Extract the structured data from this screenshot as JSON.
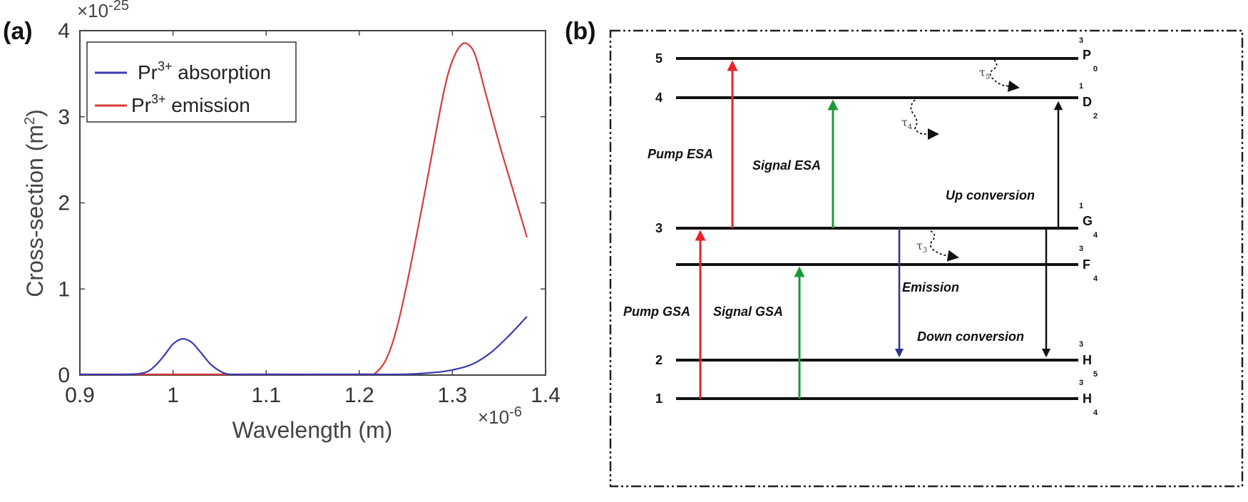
{
  "panel_a": {
    "letter": "(a)",
    "y_multiplier": "×10",
    "y_exponent": "-25",
    "x_multiplier": "×10",
    "x_exponent": "-6",
    "ylabel_main": "Cross-section (m",
    "ylabel_sup": "2",
    "ylabel_end": ")",
    "xlabel": "Wavelength (m)",
    "legend": [
      {
        "pre": "Pr",
        "sup": "3+",
        "post": " absorption",
        "color": "#3b3bb0"
      },
      {
        "pre": "Pr",
        "sup": "3+",
        "post": " emission",
        "color": "#d93a3a"
      }
    ]
  },
  "chart_data": {
    "type": "line",
    "title": "",
    "xlabel": "Wavelength (m)",
    "ylabel": "Cross-section (m^2)",
    "x_scale": "1e-6",
    "y_scale": "1e-25",
    "xlim": [
      0.9,
      1.4
    ],
    "ylim": [
      0,
      4
    ],
    "xticks": [
      "0.9",
      "1",
      "1.1",
      "1.2",
      "1.3",
      "1.4"
    ],
    "yticks": [
      "0",
      "1",
      "2",
      "3",
      "4"
    ],
    "xtick_values": [
      0.9,
      1.0,
      1.1,
      1.2,
      1.3,
      1.4
    ],
    "ytick_values": [
      0,
      1,
      2,
      3,
      4
    ],
    "series": [
      {
        "name": "Pr3+ absorption",
        "color": "#3b3bb0",
        "x": [
          0.9,
          0.95,
          0.97,
          0.98,
          0.99,
          1.0,
          1.01,
          1.02,
          1.03,
          1.04,
          1.05,
          1.06,
          1.08,
          1.1,
          1.2,
          1.25,
          1.28,
          1.3,
          1.32,
          1.34,
          1.36,
          1.38
        ],
        "y": [
          0.0,
          0.0,
          0.03,
          0.1,
          0.22,
          0.36,
          0.42,
          0.38,
          0.26,
          0.13,
          0.05,
          0.01,
          0.0,
          0.0,
          0.0,
          0.01,
          0.03,
          0.06,
          0.12,
          0.25,
          0.45,
          0.68
        ]
      },
      {
        "name": "Pr3+ emission",
        "color": "#d93a3a",
        "x": [
          0.9,
          1.0,
          1.1,
          1.2,
          1.22,
          1.235,
          1.25,
          1.27,
          1.29,
          1.3,
          1.31,
          1.318,
          1.325,
          1.335,
          1.35,
          1.365,
          1.38
        ],
        "y": [
          0.0,
          0.0,
          0.0,
          0.0,
          0.05,
          0.35,
          1.0,
          2.1,
          3.25,
          3.65,
          3.84,
          3.83,
          3.7,
          3.3,
          2.7,
          2.15,
          1.6
        ]
      }
    ]
  },
  "panel_b": {
    "letter": "(b)",
    "levels": [
      {
        "num": "1",
        "sup": "3",
        "term": "H",
        "sub": "4"
      },
      {
        "num": "2",
        "sup": "3",
        "term": "H",
        "sub": "5"
      },
      {
        "num": "",
        "sup": "3",
        "term": "F",
        "sub": "4"
      },
      {
        "num": "3",
        "sup": "1",
        "term": "G",
        "sub": "4"
      },
      {
        "num": "4",
        "sup": "1",
        "term": "D",
        "sub": "2"
      },
      {
        "num": "5",
        "sup": "3",
        "term": "P",
        "sub": "0"
      }
    ],
    "processes": {
      "pump_esa": "Pump ESA",
      "signal_esa": "Signal ESA",
      "up_conversion": "Up conversion",
      "emission": "Emission",
      "pump_gsa": "Pump GSA",
      "signal_gsa": "Signal GSA",
      "down_conversion": "Down conversion"
    },
    "decays": [
      {
        "sym": "τ",
        "sub": "5"
      },
      {
        "sym": "τ",
        "sub": "4"
      },
      {
        "sym": "τ",
        "sub": "3"
      }
    ],
    "colors": {
      "pump": "#e8232a",
      "signal": "#1a9a3a",
      "emission": "#2e3192",
      "conversion": "#111111"
    }
  }
}
